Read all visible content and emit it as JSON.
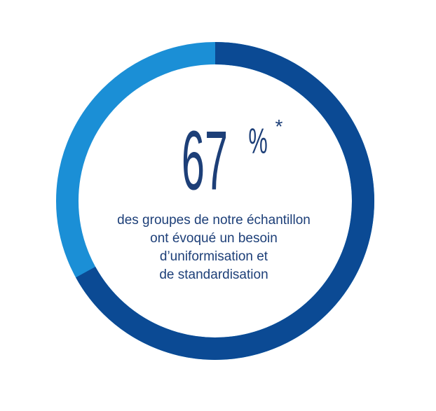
{
  "chart_data": {
    "type": "ring",
    "values": [
      67
    ],
    "unit": "%",
    "footnote_mark": "*",
    "description": [
      "des groupes de notre échantillon",
      "ont évoqué un besoin",
      "d’uniformisation et",
      "de standardisation"
    ],
    "color": "#0b4a94",
    "track_color": "#1b8fd6"
  }
}
